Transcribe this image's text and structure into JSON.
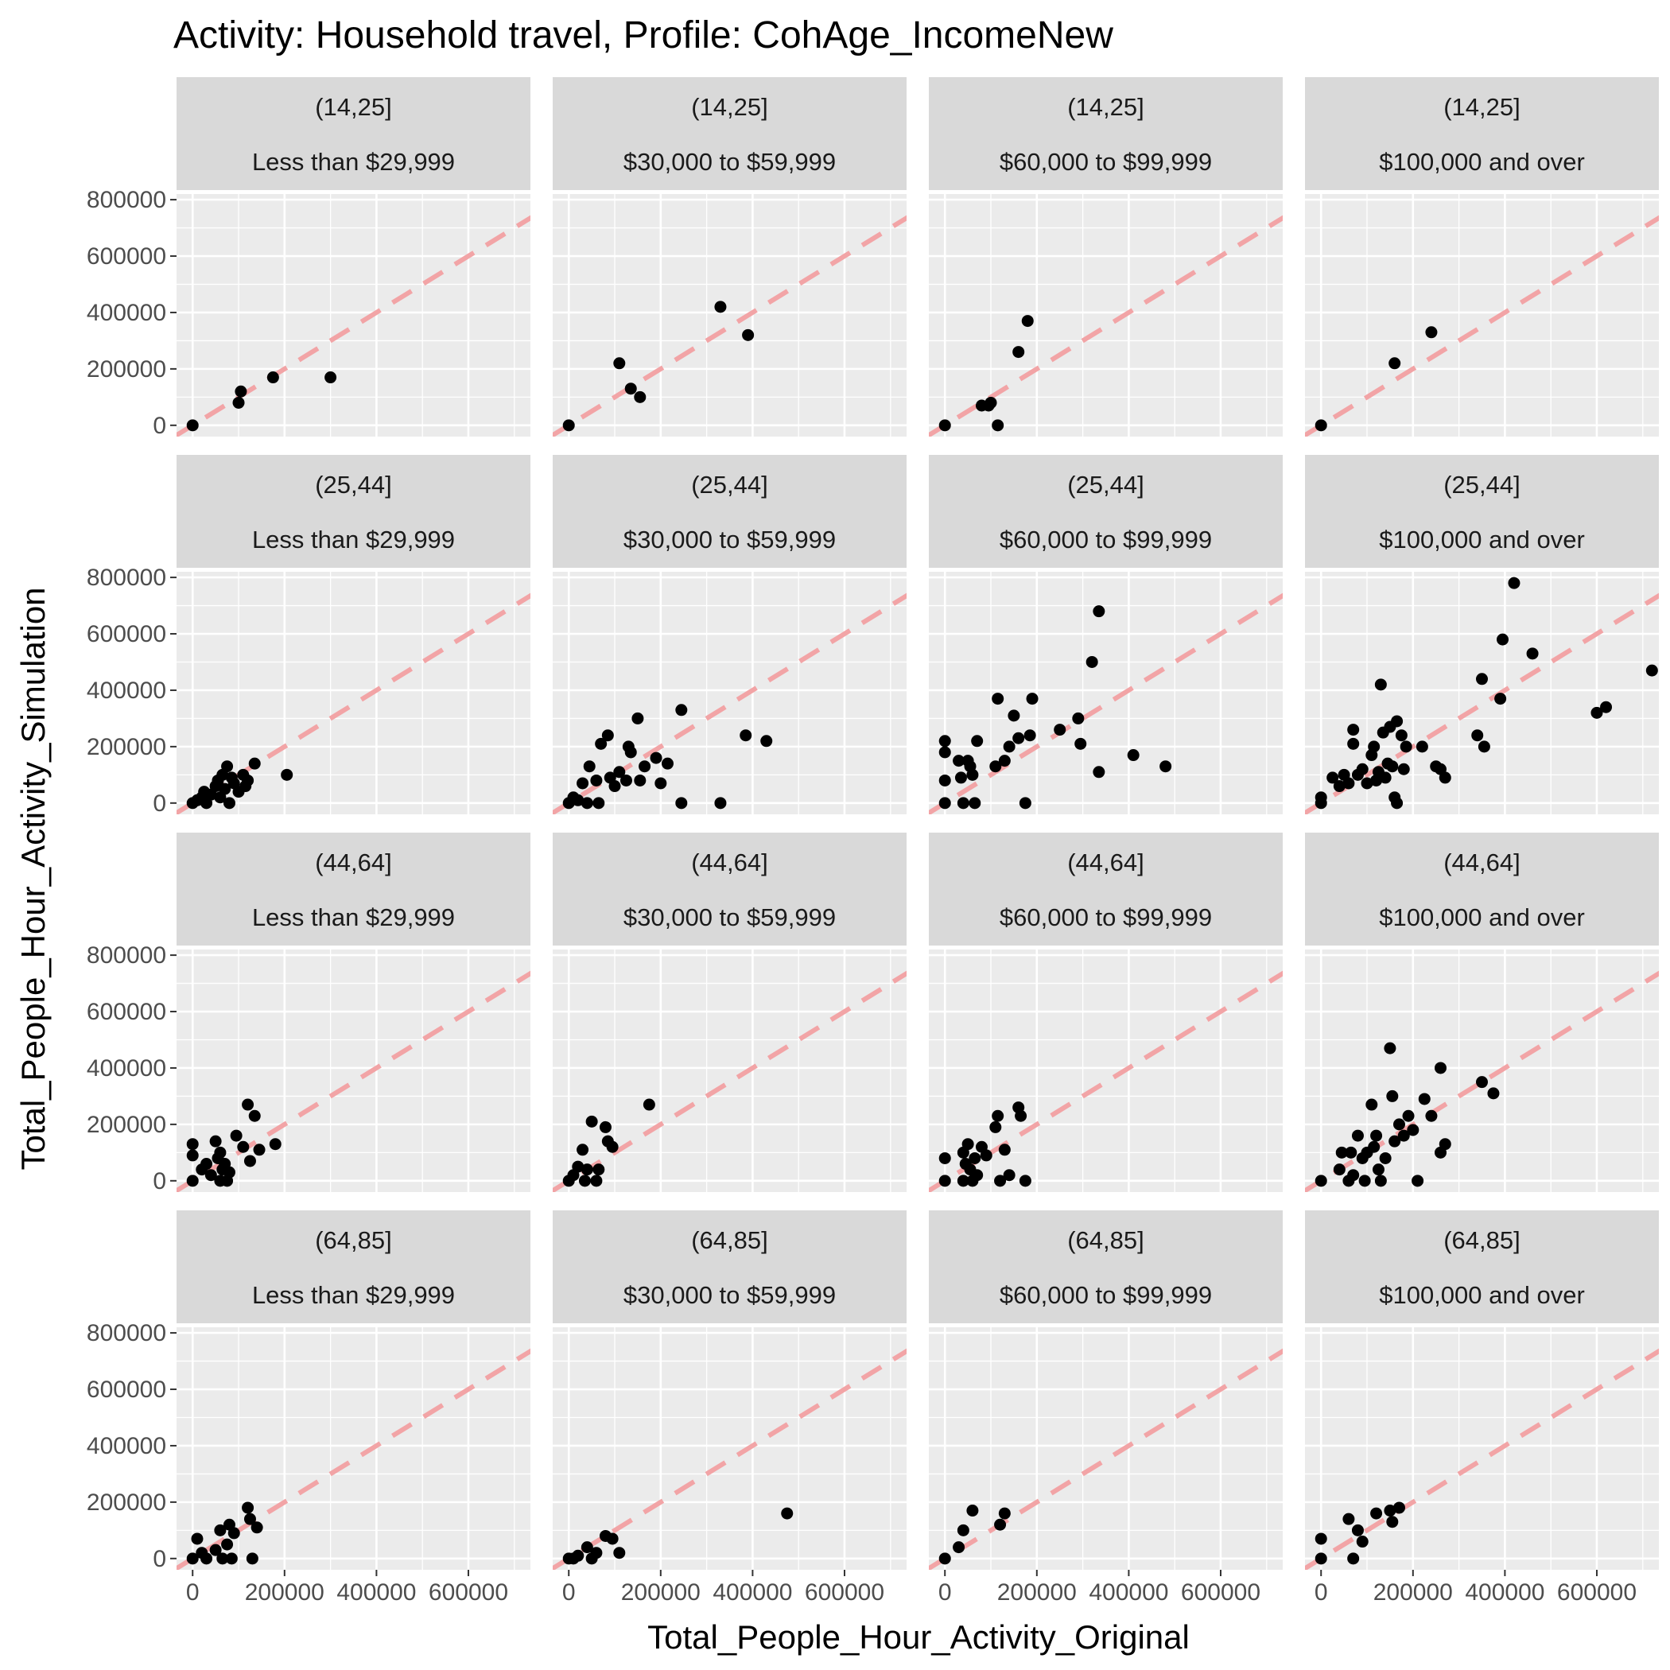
{
  "chart_data": {
    "type": "scatter",
    "title": "Activity: Household travel, Profile: CohAge_IncomeNew",
    "xlabel": "Total_People_Hour_Activity_Original",
    "ylabel": "Total_People_Hour_Activity_Simulation",
    "facet_rows": [
      "(14,25]",
      "(25,44]",
      "(44,64]",
      "(64,85]"
    ],
    "facet_cols": [
      "Less than $29,999",
      "$30,000 to $59,999",
      "$60,000 to $99,999",
      "$100,000 and over"
    ],
    "x_ticks": [
      "0",
      "200000",
      "400000",
      "600000"
    ],
    "y_ticks": [
      "0",
      "200000",
      "400000",
      "600000",
      "800000"
    ],
    "xlim": [
      -35000,
      735000
    ],
    "ylim": [
      -40000,
      820000
    ],
    "grid": true,
    "reference_line": {
      "type": "identity",
      "slope": 1,
      "intercept": 0,
      "style": "dashed",
      "color": "#f2a4a6"
    },
    "point_color": "#000000",
    "panel_background": "#ebebeb",
    "strip_background": "#d9d9d9",
    "panels": [
      {
        "row": "(14,25]",
        "col": "Less than $29,999",
        "points": [
          [
            0,
            0
          ],
          [
            100000,
            80000
          ],
          [
            105000,
            120000
          ],
          [
            175000,
            170000
          ],
          [
            300000,
            170000
          ]
        ]
      },
      {
        "row": "(14,25]",
        "col": "$30,000 to $59,999",
        "points": [
          [
            0,
            0
          ],
          [
            110000,
            220000
          ],
          [
            135000,
            130000
          ],
          [
            155000,
            100000
          ],
          [
            330000,
            420000
          ],
          [
            390000,
            320000
          ]
        ]
      },
      {
        "row": "(14,25]",
        "col": "$60,000 to $99,999",
        "points": [
          [
            0,
            0
          ],
          [
            80000,
            70000
          ],
          [
            95000,
            70000
          ],
          [
            100000,
            80000
          ],
          [
            115000,
            0
          ],
          [
            160000,
            260000
          ],
          [
            180000,
            370000
          ]
        ]
      },
      {
        "row": "(14,25]",
        "col": "$100,000 and over",
        "points": [
          [
            0,
            0
          ],
          [
            160000,
            220000
          ],
          [
            240000,
            330000
          ]
        ]
      },
      {
        "row": "(25,44]",
        "col": "Less than $29,999",
        "points": [
          [
            0,
            0
          ],
          [
            10000,
            10000
          ],
          [
            20000,
            20000
          ],
          [
            25000,
            40000
          ],
          [
            30000,
            0
          ],
          [
            40000,
            30000
          ],
          [
            50000,
            60000
          ],
          [
            55000,
            80000
          ],
          [
            60000,
            20000
          ],
          [
            65000,
            100000
          ],
          [
            70000,
            50000
          ],
          [
            75000,
            130000
          ],
          [
            80000,
            0
          ],
          [
            85000,
            90000
          ],
          [
            90000,
            70000
          ],
          [
            100000,
            40000
          ],
          [
            110000,
            100000
          ],
          [
            115000,
            60000
          ],
          [
            120000,
            80000
          ],
          [
            135000,
            140000
          ],
          [
            205000,
            100000
          ]
        ]
      },
      {
        "row": "(25,44]",
        "col": "$30,000 to $59,999",
        "points": [
          [
            0,
            0
          ],
          [
            10000,
            20000
          ],
          [
            20000,
            10000
          ],
          [
            30000,
            70000
          ],
          [
            40000,
            0
          ],
          [
            45000,
            130000
          ],
          [
            60000,
            80000
          ],
          [
            65000,
            0
          ],
          [
            70000,
            210000
          ],
          [
            85000,
            240000
          ],
          [
            90000,
            90000
          ],
          [
            100000,
            60000
          ],
          [
            110000,
            110000
          ],
          [
            125000,
            80000
          ],
          [
            130000,
            200000
          ],
          [
            135000,
            180000
          ],
          [
            150000,
            300000
          ],
          [
            155000,
            80000
          ],
          [
            165000,
            130000
          ],
          [
            190000,
            160000
          ],
          [
            200000,
            70000
          ],
          [
            215000,
            140000
          ],
          [
            245000,
            330000
          ],
          [
            245000,
            0
          ],
          [
            330000,
            0
          ],
          [
            385000,
            240000
          ],
          [
            430000,
            220000
          ]
        ]
      },
      {
        "row": "(25,44]",
        "col": "$60,000 to $99,999",
        "points": [
          [
            0,
            220000
          ],
          [
            0,
            180000
          ],
          [
            0,
            80000
          ],
          [
            0,
            0
          ],
          [
            30000,
            150000
          ],
          [
            35000,
            90000
          ],
          [
            40000,
            0
          ],
          [
            50000,
            150000
          ],
          [
            55000,
            130000
          ],
          [
            60000,
            100000
          ],
          [
            65000,
            0
          ],
          [
            70000,
            220000
          ],
          [
            110000,
            130000
          ],
          [
            115000,
            370000
          ],
          [
            130000,
            150000
          ],
          [
            140000,
            200000
          ],
          [
            150000,
            310000
          ],
          [
            160000,
            230000
          ],
          [
            175000,
            0
          ],
          [
            185000,
            240000
          ],
          [
            190000,
            370000
          ],
          [
            250000,
            260000
          ],
          [
            290000,
            300000
          ],
          [
            295000,
            210000
          ],
          [
            320000,
            500000
          ],
          [
            335000,
            680000
          ],
          [
            335000,
            110000
          ],
          [
            410000,
            170000
          ],
          [
            480000,
            130000
          ]
        ]
      },
      {
        "row": "(25,44]",
        "col": "$100,000 and over",
        "points": [
          [
            0,
            0
          ],
          [
            0,
            20000
          ],
          [
            25000,
            90000
          ],
          [
            40000,
            60000
          ],
          [
            50000,
            100000
          ],
          [
            60000,
            70000
          ],
          [
            70000,
            260000
          ],
          [
            70000,
            210000
          ],
          [
            80000,
            100000
          ],
          [
            90000,
            120000
          ],
          [
            100000,
            70000
          ],
          [
            110000,
            170000
          ],
          [
            115000,
            200000
          ],
          [
            120000,
            80000
          ],
          [
            125000,
            110000
          ],
          [
            130000,
            420000
          ],
          [
            135000,
            250000
          ],
          [
            140000,
            90000
          ],
          [
            145000,
            140000
          ],
          [
            150000,
            270000
          ],
          [
            155000,
            130000
          ],
          [
            160000,
            20000
          ],
          [
            165000,
            290000
          ],
          [
            165000,
            0
          ],
          [
            175000,
            240000
          ],
          [
            180000,
            120000
          ],
          [
            185000,
            200000
          ],
          [
            220000,
            200000
          ],
          [
            250000,
            130000
          ],
          [
            260000,
            120000
          ],
          [
            270000,
            90000
          ],
          [
            340000,
            240000
          ],
          [
            350000,
            440000
          ],
          [
            355000,
            200000
          ],
          [
            390000,
            370000
          ],
          [
            395000,
            580000
          ],
          [
            420000,
            780000
          ],
          [
            460000,
            530000
          ],
          [
            600000,
            320000
          ],
          [
            620000,
            340000
          ],
          [
            720000,
            470000
          ]
        ]
      },
      {
        "row": "(44,64]",
        "col": "Less than $29,999",
        "points": [
          [
            0,
            0
          ],
          [
            0,
            130000
          ],
          [
            0,
            90000
          ],
          [
            20000,
            40000
          ],
          [
            30000,
            60000
          ],
          [
            40000,
            20000
          ],
          [
            50000,
            140000
          ],
          [
            55000,
            80000
          ],
          [
            60000,
            100000
          ],
          [
            60000,
            0
          ],
          [
            65000,
            40000
          ],
          [
            70000,
            60000
          ],
          [
            75000,
            0
          ],
          [
            80000,
            30000
          ],
          [
            95000,
            160000
          ],
          [
            110000,
            120000
          ],
          [
            120000,
            270000
          ],
          [
            125000,
            70000
          ],
          [
            135000,
            230000
          ],
          [
            145000,
            110000
          ],
          [
            180000,
            130000
          ]
        ]
      },
      {
        "row": "(44,64]",
        "col": "$30,000 to $59,999",
        "points": [
          [
            0,
            0
          ],
          [
            10000,
            20000
          ],
          [
            20000,
            50000
          ],
          [
            30000,
            110000
          ],
          [
            35000,
            0
          ],
          [
            40000,
            40000
          ],
          [
            50000,
            210000
          ],
          [
            60000,
            0
          ],
          [
            65000,
            40000
          ],
          [
            80000,
            190000
          ],
          [
            85000,
            140000
          ],
          [
            95000,
            120000
          ],
          [
            175000,
            270000
          ]
        ]
      },
      {
        "row": "(44,64]",
        "col": "$60,000 to $99,999",
        "points": [
          [
            0,
            80000
          ],
          [
            0,
            0
          ],
          [
            40000,
            0
          ],
          [
            40000,
            100000
          ],
          [
            45000,
            60000
          ],
          [
            50000,
            130000
          ],
          [
            55000,
            40000
          ],
          [
            60000,
            0
          ],
          [
            65000,
            80000
          ],
          [
            70000,
            20000
          ],
          [
            80000,
            120000
          ],
          [
            90000,
            90000
          ],
          [
            110000,
            190000
          ],
          [
            115000,
            230000
          ],
          [
            120000,
            0
          ],
          [
            130000,
            110000
          ],
          [
            140000,
            20000
          ],
          [
            160000,
            260000
          ],
          [
            165000,
            230000
          ],
          [
            175000,
            0
          ]
        ]
      },
      {
        "row": "(44,64]",
        "col": "$100,000 and over",
        "points": [
          [
            0,
            0
          ],
          [
            40000,
            40000
          ],
          [
            45000,
            100000
          ],
          [
            60000,
            0
          ],
          [
            65000,
            100000
          ],
          [
            70000,
            20000
          ],
          [
            80000,
            160000
          ],
          [
            90000,
            80000
          ],
          [
            95000,
            0
          ],
          [
            100000,
            100000
          ],
          [
            110000,
            270000
          ],
          [
            115000,
            120000
          ],
          [
            120000,
            160000
          ],
          [
            125000,
            40000
          ],
          [
            130000,
            0
          ],
          [
            140000,
            80000
          ],
          [
            150000,
            470000
          ],
          [
            155000,
            300000
          ],
          [
            160000,
            140000
          ],
          [
            170000,
            200000
          ],
          [
            180000,
            160000
          ],
          [
            190000,
            230000
          ],
          [
            200000,
            180000
          ],
          [
            210000,
            0
          ],
          [
            225000,
            290000
          ],
          [
            240000,
            230000
          ],
          [
            260000,
            400000
          ],
          [
            270000,
            130000
          ],
          [
            260000,
            100000
          ],
          [
            350000,
            350000
          ],
          [
            375000,
            310000
          ]
        ]
      },
      {
        "row": "(64,85]",
        "col": "Less than $29,999",
        "points": [
          [
            0,
            0
          ],
          [
            10000,
            70000
          ],
          [
            20000,
            20000
          ],
          [
            30000,
            0
          ],
          [
            50000,
            30000
          ],
          [
            60000,
            100000
          ],
          [
            65000,
            0
          ],
          [
            75000,
            50000
          ],
          [
            80000,
            120000
          ],
          [
            85000,
            0
          ],
          [
            90000,
            90000
          ],
          [
            120000,
            180000
          ],
          [
            125000,
            140000
          ],
          [
            130000,
            0
          ],
          [
            140000,
            110000
          ]
        ]
      },
      {
        "row": "(64,85]",
        "col": "$30,000 to $59,999",
        "points": [
          [
            0,
            0
          ],
          [
            10000,
            0
          ],
          [
            20000,
            10000
          ],
          [
            40000,
            40000
          ],
          [
            50000,
            0
          ],
          [
            60000,
            20000
          ],
          [
            80000,
            80000
          ],
          [
            95000,
            70000
          ],
          [
            110000,
            20000
          ],
          [
            475000,
            160000
          ]
        ]
      },
      {
        "row": "(64,85]",
        "col": "$60,000 to $99,999",
        "points": [
          [
            0,
            0
          ],
          [
            30000,
            40000
          ],
          [
            40000,
            100000
          ],
          [
            60000,
            170000
          ],
          [
            120000,
            120000
          ],
          [
            130000,
            160000
          ]
        ]
      },
      {
        "row": "(64,85]",
        "col": "$100,000 and over",
        "points": [
          [
            0,
            0
          ],
          [
            0,
            70000
          ],
          [
            60000,
            140000
          ],
          [
            70000,
            0
          ],
          [
            80000,
            100000
          ],
          [
            90000,
            60000
          ],
          [
            120000,
            160000
          ],
          [
            150000,
            170000
          ],
          [
            155000,
            130000
          ],
          [
            170000,
            180000
          ]
        ]
      }
    ]
  }
}
